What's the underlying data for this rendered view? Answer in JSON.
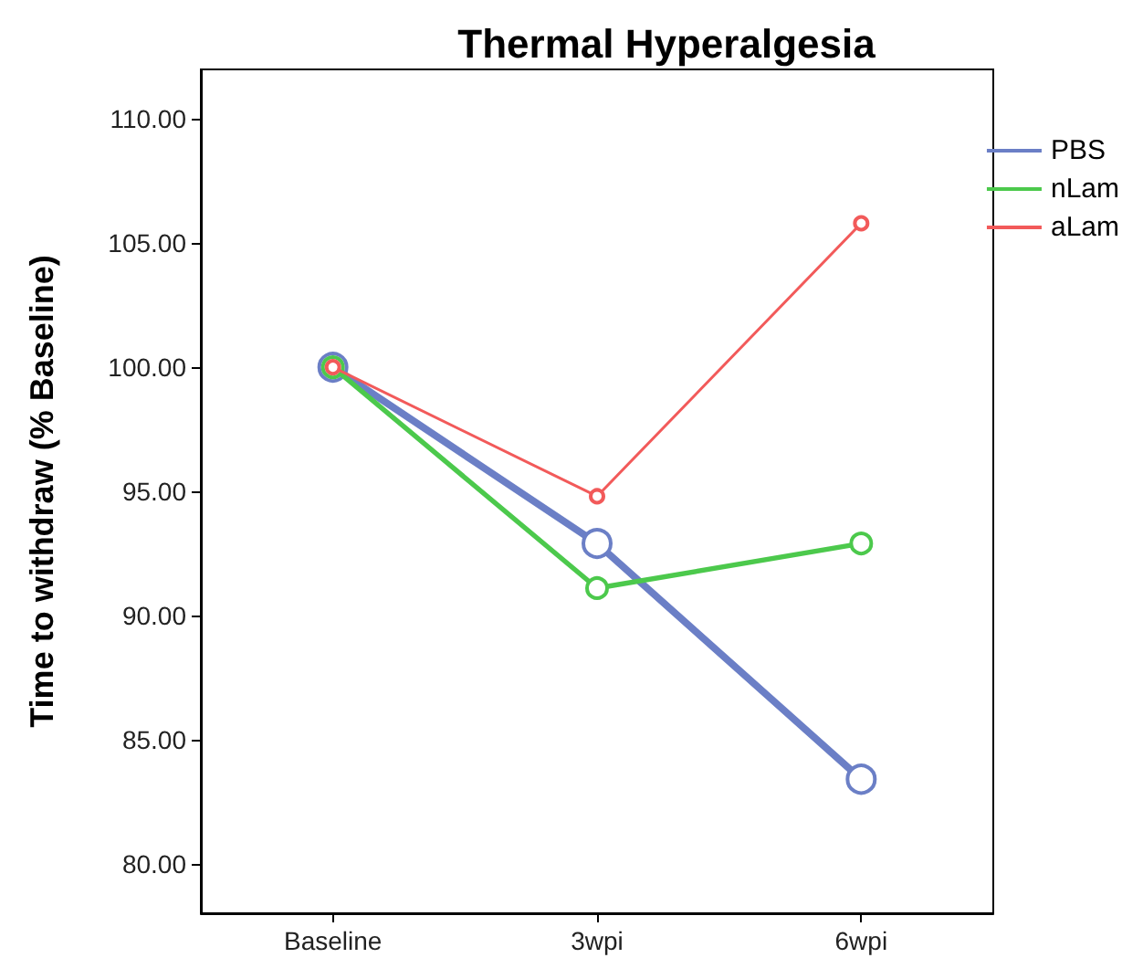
{
  "chart_data": {
    "type": "line",
    "title": "Thermal Hyperalgesia",
    "ylabel": "Time to withdraw (% Baseline)",
    "categories": [
      "Baseline",
      "3wpi",
      "6wpi"
    ],
    "series": [
      {
        "name": "PBS",
        "color": "#6b7fc6",
        "values": [
          100,
          92.9,
          83.4
        ]
      },
      {
        "name": "nLam",
        "color": "#4cc94c",
        "values": [
          100,
          91.1,
          92.9
        ]
      },
      {
        "name": "aLam",
        "color": "#f25a5a",
        "values": [
          100,
          94.8,
          105.8
        ]
      }
    ],
    "ylim": [
      78,
      112
    ],
    "yticks": [
      {
        "value": 80,
        "label": "80.00"
      },
      {
        "value": 85,
        "label": "85.00"
      },
      {
        "value": 90,
        "label": "90.00"
      },
      {
        "value": 95,
        "label": "95.00"
      },
      {
        "value": 100,
        "label": "100.00"
      },
      {
        "value": 105,
        "label": "105.00"
      },
      {
        "value": 110,
        "label": "110.00"
      }
    ],
    "grid": false,
    "legend": "top right",
    "marker": "circle",
    "line_style": "solid"
  }
}
